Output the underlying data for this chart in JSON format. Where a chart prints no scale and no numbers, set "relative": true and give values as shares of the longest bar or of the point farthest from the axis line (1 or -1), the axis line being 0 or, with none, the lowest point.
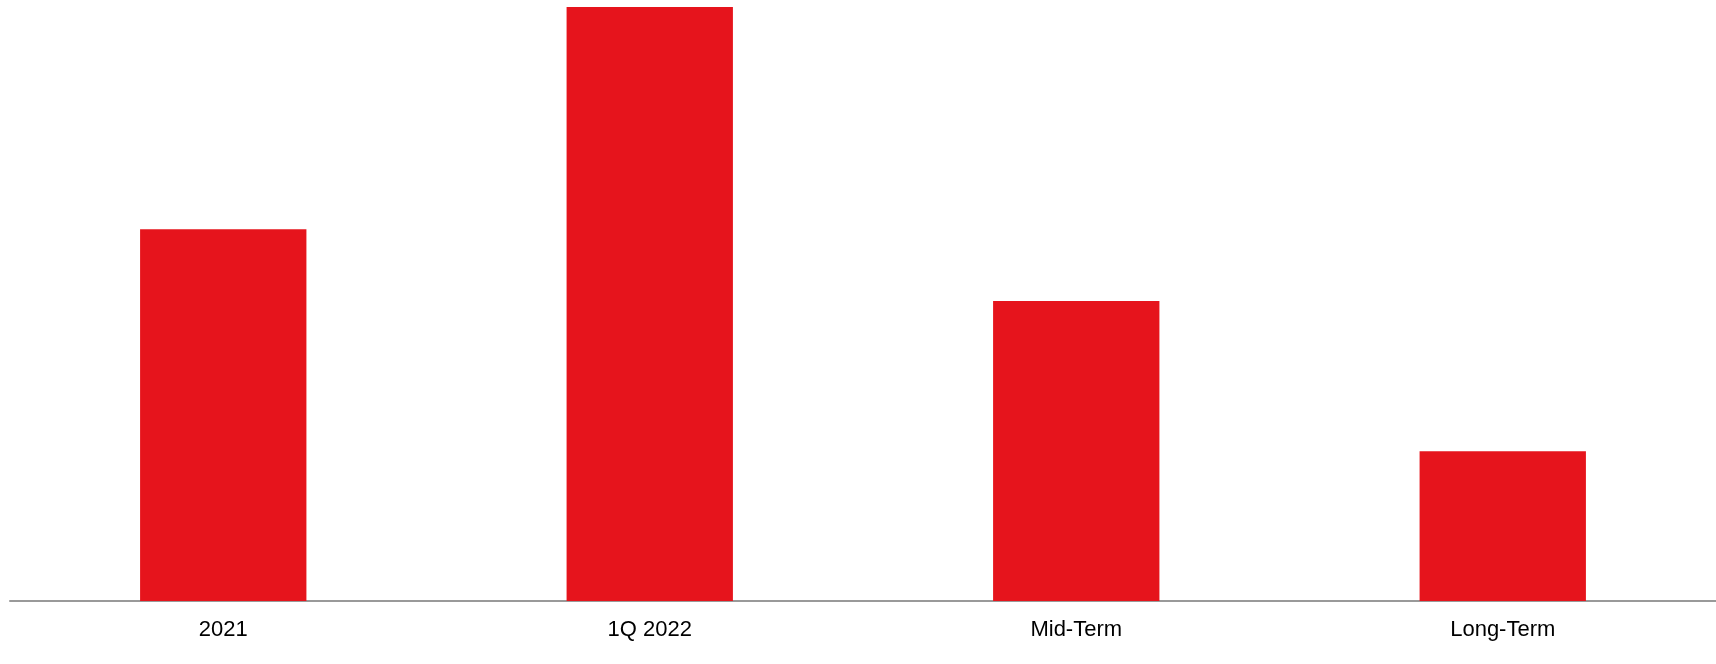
{
  "chart_data": {
    "type": "bar",
    "relative": true,
    "categories": [
      "2021",
      "1Q 2022",
      "Mid-Term",
      "Long-Term"
    ],
    "values": [
      0.626,
      1,
      0.505,
      0.252
    ],
    "color": "#e6141c"
  }
}
